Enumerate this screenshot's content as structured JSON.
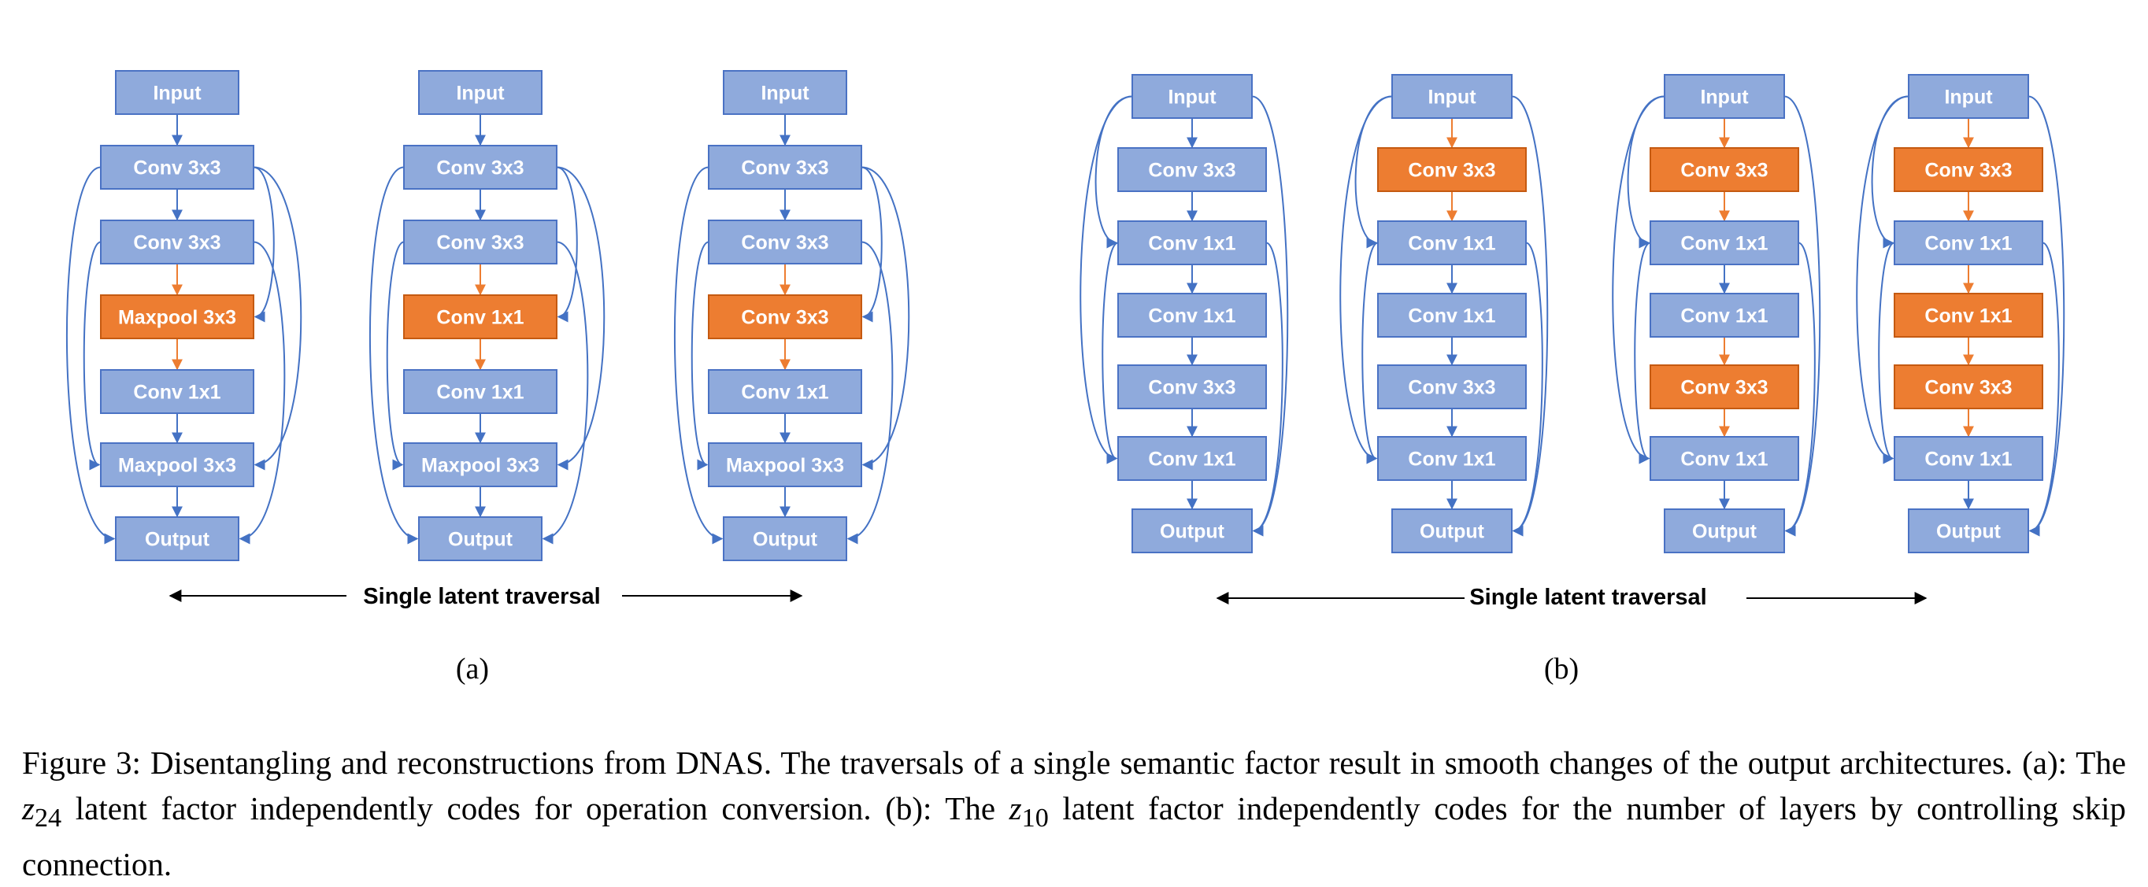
{
  "colors": {
    "node_fill": "#8faadc",
    "node_stroke": "#4a72c4",
    "highlight_fill": "#ed7d31",
    "highlight_stroke": "#c55a11",
    "edge": "#4472c4",
    "highlight_edge": "#ed7d31"
  },
  "panel_a": {
    "label": "(a)",
    "traversal_label": "Single latent traversal",
    "architectures": [
      {
        "nodes": [
          {
            "label": "Input",
            "highlight": false
          },
          {
            "label": "Conv 3x3",
            "highlight": false
          },
          {
            "label": "Conv 3x3",
            "highlight": false
          },
          {
            "label": "Maxpool 3x3",
            "highlight": true
          },
          {
            "label": "Conv 1x1",
            "highlight": false
          },
          {
            "label": "Maxpool 3x3",
            "highlight": false
          },
          {
            "label": "Output",
            "highlight": false
          }
        ]
      },
      {
        "nodes": [
          {
            "label": "Input",
            "highlight": false
          },
          {
            "label": "Conv 3x3",
            "highlight": false
          },
          {
            "label": "Conv 3x3",
            "highlight": false
          },
          {
            "label": "Conv 1x1",
            "highlight": true
          },
          {
            "label": "Conv 1x1",
            "highlight": false
          },
          {
            "label": "Maxpool 3x3",
            "highlight": false
          },
          {
            "label": "Output",
            "highlight": false
          }
        ]
      },
      {
        "nodes": [
          {
            "label": "Input",
            "highlight": false
          },
          {
            "label": "Conv 3x3",
            "highlight": false
          },
          {
            "label": "Conv 3x3",
            "highlight": false
          },
          {
            "label": "Conv 3x3",
            "highlight": true
          },
          {
            "label": "Conv 1x1",
            "highlight": false
          },
          {
            "label": "Maxpool 3x3",
            "highlight": false
          },
          {
            "label": "Output",
            "highlight": false
          }
        ]
      }
    ]
  },
  "panel_b": {
    "label": "(b)",
    "traversal_label": "Single latent traversal",
    "architectures": [
      {
        "nodes": [
          {
            "label": "Input",
            "highlight": false
          },
          {
            "label": "Conv 3x3",
            "highlight": false
          },
          {
            "label": "Conv 1x1",
            "highlight": false
          },
          {
            "label": "Conv 1x1",
            "highlight": false
          },
          {
            "label": "Conv 3x3",
            "highlight": false
          },
          {
            "label": "Conv 1x1",
            "highlight": false
          },
          {
            "label": "Output",
            "highlight": false
          }
        ]
      },
      {
        "nodes": [
          {
            "label": "Input",
            "highlight": false
          },
          {
            "label": "Conv 3x3",
            "highlight": true
          },
          {
            "label": "Conv 1x1",
            "highlight": false
          },
          {
            "label": "Conv 1x1",
            "highlight": false
          },
          {
            "label": "Conv 3x3",
            "highlight": false
          },
          {
            "label": "Conv 1x1",
            "highlight": false
          },
          {
            "label": "Output",
            "highlight": false
          }
        ]
      },
      {
        "nodes": [
          {
            "label": "Input",
            "highlight": false
          },
          {
            "label": "Conv 3x3",
            "highlight": true
          },
          {
            "label": "Conv 1x1",
            "highlight": false
          },
          {
            "label": "Conv 1x1",
            "highlight": false
          },
          {
            "label": "Conv 3x3",
            "highlight": true
          },
          {
            "label": "Conv 1x1",
            "highlight": false
          },
          {
            "label": "Output",
            "highlight": false
          }
        ]
      },
      {
        "nodes": [
          {
            "label": "Input",
            "highlight": false
          },
          {
            "label": "Conv 3x3",
            "highlight": true
          },
          {
            "label": "Conv 1x1",
            "highlight": false
          },
          {
            "label": "Conv 1x1",
            "highlight": true
          },
          {
            "label": "Conv 3x3",
            "highlight": true
          },
          {
            "label": "Conv 1x1",
            "highlight": false
          },
          {
            "label": "Output",
            "highlight": false
          }
        ]
      }
    ]
  },
  "caption": {
    "figure_label": "Figure 3:",
    "text_1": "Disentangling and reconstructions from DNAS. The traversals of a single semantic factor result in smooth changes of the output architectures. (a): The",
    "latent_a": "z",
    "latent_a_sub": "24",
    "text_2": "latent factor independently codes for operation conversion. (b): The",
    "latent_b": "z",
    "latent_b_sub": "10",
    "text_3": "latent factor independently codes for the number of layers by controlling skip connection."
  }
}
